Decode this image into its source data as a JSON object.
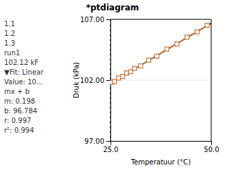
{
  "chart_data": {
    "type": "scatter",
    "title": "*ptdiagram",
    "annotations": [
      "1.1",
      "1.2",
      "1.3",
      "run1",
      "102.12 kF",
      "▼Fit: Linear",
      "Value: 10...",
      "mx + b",
      "m: 0.198",
      "b: 96.784",
      "r: 0.997",
      "r²: 0.994"
    ],
    "x_label": "Temperatuur (°C)",
    "y_label": "Druk (kPa)",
    "xlim": [
      25.0,
      50.0
    ],
    "ylim": [
      97.0,
      107.0
    ],
    "xticks": [
      {
        "value": 25.0,
        "label": "25.0"
      },
      {
        "value": 50.0,
        "label": "50.0"
      }
    ],
    "yticks": [
      {
        "value": 97.0,
        "label": "97.00"
      },
      {
        "value": 102.0,
        "label": "102.00"
      },
      {
        "value": 107.0,
        "label": "107.00"
      }
    ],
    "grid": true,
    "reference_x": 25.0,
    "series": [
      {
        "type": "line",
        "color": "#000000",
        "x": [
          25.0,
          50.0
        ],
        "values": [
          101.734,
          106.684
        ]
      },
      {
        "type": "line",
        "marker": "square",
        "color": "#c87030",
        "x": [
          25.3,
          26.0,
          27.0,
          28.0,
          29.0,
          30.0,
          31.0,
          32.5,
          34.5,
          36.5,
          39.0,
          41.5,
          44.0,
          46.5,
          49.0
        ],
        "values": [
          101.8234,
          101.892,
          102.18,
          102.308,
          102.586,
          102.694,
          102.962,
          103.169,
          103.645,
          103.971,
          104.556,
          104.971,
          105.536,
          105.971,
          106.516
        ]
      }
    ]
  }
}
